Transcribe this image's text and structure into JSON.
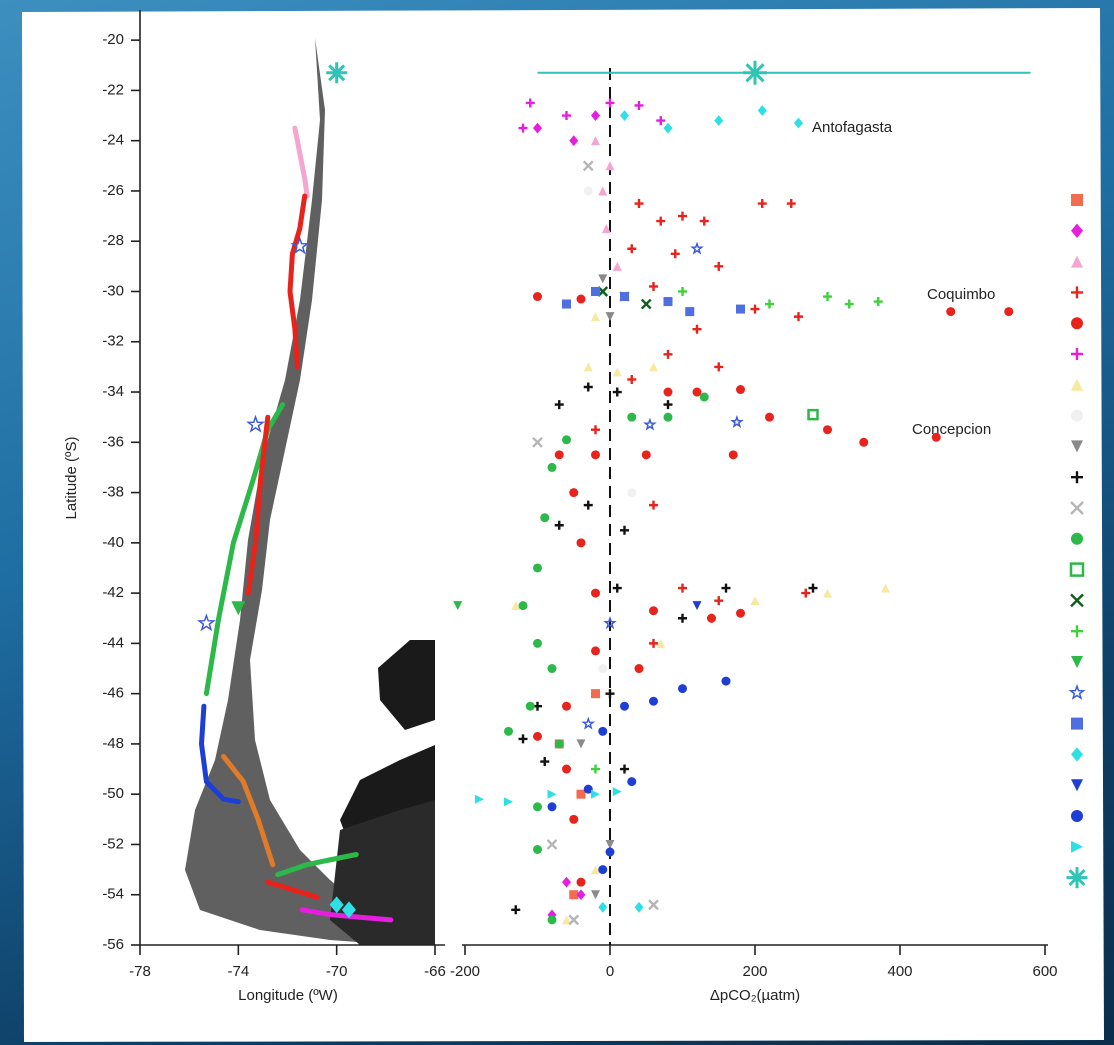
{
  "chart_data": {
    "type": "scatter",
    "ylabel": "Latitude (ºS)",
    "ylim": [
      -56,
      -19
    ],
    "yticks": [
      -56,
      -54,
      -52,
      -50,
      -48,
      -46,
      -44,
      -42,
      -40,
      -38,
      -36,
      -34,
      -32,
      -30,
      -28,
      -26,
      -24,
      -22,
      -20
    ],
    "panels": [
      {
        "type": "map",
        "xlabel": "Longitude (ºW)",
        "xlim": [
          -78,
          -66
        ],
        "xticks": [
          -78,
          -74,
          -70,
          -66
        ],
        "series": [
          {
            "color": "#f4a6d0",
            "marker": "line",
            "x": [
              -71.7,
              -71.5,
              -71.3,
              -71.2
            ],
            "y": [
              -23.5,
              -24.5,
              -25.5,
              -26.2
            ]
          },
          {
            "color": "#e8231c",
            "marker": "line",
            "x": [
              -71.3,
              -71.5,
              -71.8,
              -71.9,
              -71.7,
              -71.6
            ],
            "y": [
              -26.2,
              -27.5,
              -28.5,
              -30,
              -31.5,
              -33
            ]
          },
          {
            "color": "#2db84a",
            "marker": "line",
            "x": [
              -72.2,
              -72.8,
              -73.4,
              -74.2,
              -74.8,
              -75.3
            ],
            "y": [
              -34.5,
              -35.5,
              -37.5,
              -40,
              -43,
              -46
            ]
          },
          {
            "color": "#e8231c",
            "marker": "line",
            "x": [
              -72.8,
              -73.1,
              -73.3,
              -73.6
            ],
            "y": [
              -35,
              -37.5,
              -40,
              -42
            ]
          },
          {
            "color": "#1d3fd6",
            "marker": "line",
            "x": [
              -75.4,
              -75.5,
              -75.3,
              -74.6,
              -74
            ],
            "y": [
              -46.5,
              -48,
              -49.5,
              -50.2,
              -50.3
            ]
          },
          {
            "color": "#e07b2a",
            "marker": "line",
            "x": [
              -74.6,
              -73.8,
              -73.2,
              -72.6
            ],
            "y": [
              -48.5,
              -49.5,
              -51,
              -52.8
            ]
          },
          {
            "color": "#2db84a",
            "marker": "line",
            "x": [
              -72.4,
              -71.2,
              -70.2,
              -69.2
            ],
            "y": [
              -53.2,
              -52.8,
              -52.6,
              -52.4
            ]
          },
          {
            "color": "#e8231c",
            "marker": "line",
            "x": [
              -72.8,
              -71.8,
              -70.8
            ],
            "y": [
              -53.5,
              -53.8,
              -54.1
            ]
          },
          {
            "color": "#e61ee0",
            "marker": "line",
            "x": [
              -71.4,
              -70.2,
              -69,
              -67.8
            ],
            "y": [
              -54.6,
              -54.8,
              -54.9,
              -55
            ]
          },
          {
            "color": "#2ec4b6",
            "marker": "asterisk",
            "x": [
              -70
            ],
            "y": [
              -21.3
            ]
          },
          {
            "color": "#3d5bd9",
            "marker": "star",
            "x": [
              -73.3,
              -75.3,
              -71.5
            ],
            "y": [
              -35.3,
              -43.2,
              -28.2
            ]
          },
          {
            "color": "#2db84a",
            "marker": "tri-down",
            "x": [
              -74
            ],
            "y": [
              -42.6
            ]
          },
          {
            "color": "#2ee0e6",
            "marker": "diamond",
            "x": [
              -70,
              -69.5
            ],
            "y": [
              -54.4,
              -54.6
            ]
          }
        ]
      },
      {
        "type": "scatter",
        "xlabel": "ΔpCO₂(µatm)",
        "xlim": [
          -200,
          600
        ],
        "xticks": [
          -200,
          0,
          200,
          400,
          600
        ],
        "vline": 0,
        "annotations": [
          "Antofagasta",
          "Coquimbo",
          "Concepcion"
        ],
        "series": [
          {
            "color": "#f26a4f",
            "marker": "square",
            "x": [
              -20,
              -70,
              -40,
              -50
            ],
            "y": [
              -46,
              -48,
              -50,
              -54
            ]
          },
          {
            "color": "#e61ee0",
            "marker": "diamond",
            "x": [
              -100,
              -50,
              -20,
              -40,
              -80,
              -60
            ],
            "y": [
              -23.5,
              -24,
              -23,
              -54,
              -54.8,
              -53.5
            ]
          },
          {
            "color": "#f4a6d0",
            "marker": "triangle",
            "x": [
              -20,
              0,
              -10,
              -5,
              10
            ],
            "y": [
              -24,
              -25,
              -26,
              -27.5,
              -29
            ]
          },
          {
            "color": "#e8231c",
            "marker": "plus",
            "x": [
              40,
              70,
              100,
              130,
              210,
              30,
              90,
              150,
              60,
              200,
              260,
              120,
              80,
              150,
              250,
              30,
              -20,
              60,
              100,
              150,
              270,
              60,
              140
            ],
            "y": [
              -26.5,
              -27.2,
              -27,
              -27.2,
              -26.5,
              -28.3,
              -28.5,
              -29,
              -29.8,
              -30.7,
              -31,
              -31.5,
              -32.5,
              -33,
              -26.5,
              -33.5,
              -35.5,
              -38.5,
              -41.8,
              -42.3,
              -42,
              -44,
              -43
            ]
          },
          {
            "color": "#e8231c",
            "marker": "circle",
            "x": [
              -40,
              -100,
              80,
              120,
              180,
              220,
              300,
              350,
              450,
              470,
              550,
              -70,
              -20,
              50,
              170,
              -50,
              -40,
              -20,
              60,
              140,
              180,
              -20,
              40,
              -60,
              -100,
              -60,
              -50,
              -40
            ],
            "y": [
              -30.3,
              -30.2,
              -34,
              -34,
              -33.9,
              -35,
              -35.5,
              -36,
              -35.8,
              -30.8,
              -30.8,
              -36.5,
              -36.5,
              -36.5,
              -36.5,
              -38,
              -40,
              -42,
              -42.7,
              -43,
              -42.8,
              -44.3,
              -45,
              -46.5,
              -47.7,
              -49,
              -51,
              -53.5
            ]
          },
          {
            "color": "#e61ee0",
            "marker": "plus",
            "x": [
              -110,
              -60,
              0,
              -120,
              40,
              70
            ],
            "y": [
              -22.5,
              -23,
              -22.5,
              -23.5,
              -22.6,
              -23.2
            ]
          },
          {
            "color": "#f7e9a0",
            "marker": "triangle",
            "x": [
              -20,
              -30,
              10,
              60,
              300,
              380,
              200,
              70,
              -130,
              -60,
              -20
            ],
            "y": [
              -31,
              -33,
              -33.2,
              -33,
              -42,
              -41.8,
              -42.3,
              -44,
              -42.5,
              -55,
              -53
            ]
          },
          {
            "color": "#f0f0f0",
            "marker": "circle",
            "x": [
              -30,
              -10,
              30,
              -10
            ],
            "y": [
              -26,
              -30,
              -38,
              -45
            ]
          },
          {
            "color": "#8a8a8a",
            "marker": "tri-down",
            "x": [
              -10,
              0,
              -40,
              -20,
              0
            ],
            "y": [
              -29.5,
              -31,
              -48,
              -54,
              -52
            ]
          },
          {
            "color": "#111111",
            "marker": "plus",
            "x": [
              -30,
              10,
              80,
              -70,
              -30,
              -70,
              20,
              10,
              160,
              280,
              100,
              0,
              -100,
              -120,
              -90,
              20,
              -130
            ],
            "y": [
              -33.8,
              -34,
              -34.5,
              -34.5,
              -38.5,
              -39.3,
              -39.5,
              -41.8,
              -41.8,
              -41.8,
              -43,
              -46,
              -46.5,
              -47.8,
              -48.7,
              -49,
              -54.6
            ]
          },
          {
            "color": "#b5b5b5",
            "marker": "x",
            "x": [
              -30,
              20,
              -100,
              -80,
              -50,
              60
            ],
            "y": [
              -25,
              -30.2,
              -36,
              -52,
              -55,
              -54.4
            ]
          },
          {
            "color": "#2db84a",
            "marker": "circle",
            "x": [
              -80,
              -90,
              -100,
              -120,
              -100,
              -80,
              -110,
              -70,
              -100,
              -100,
              -80,
              -60,
              30,
              80,
              130,
              -140
            ],
            "y": [
              -37,
              -39,
              -41,
              -42.5,
              -44,
              -45,
              -46.5,
              -48,
              -50.5,
              -52.2,
              -55,
              -35.9,
              -35,
              -35,
              -34.2,
              -47.5
            ]
          },
          {
            "color": "#2db84a",
            "marker": "square-open",
            "x": [
              280
            ],
            "y": [
              -34.9
            ]
          },
          {
            "color": "#0d5e1a",
            "marker": "x",
            "x": [
              -10,
              50
            ],
            "y": [
              -30,
              -30.5
            ]
          },
          {
            "color": "#3ed13a",
            "marker": "plus",
            "x": [
              100,
              220,
              300,
              330,
              370,
              -20
            ],
            "y": [
              -30,
              -30.5,
              -30.2,
              -30.5,
              -30.4,
              -49
            ]
          },
          {
            "color": "#2db84a",
            "marker": "tri-down",
            "x": [
              -210,
              -60
            ],
            "y": [
              -42.5,
              -30.5
            ]
          },
          {
            "color": "#3d5bd9",
            "marker": "star",
            "x": [
              120,
              55,
              175,
              0,
              -30
            ],
            "y": [
              -28.3,
              -35.3,
              -35.2,
              -43.2,
              -47.2
            ]
          },
          {
            "color": "#4f6fe0",
            "marker": "square",
            "x": [
              -60,
              20,
              80,
              110,
              180,
              -20
            ],
            "y": [
              -30.5,
              -30.2,
              -30.4,
              -30.8,
              -30.7,
              -30
            ]
          },
          {
            "color": "#2ee0e6",
            "marker": "diamond",
            "x": [
              20,
              80,
              150,
              210,
              260,
              -10,
              40
            ],
            "y": [
              -23,
              -23.5,
              -23.2,
              -22.8,
              -23.3,
              -54.5,
              -54.5
            ]
          },
          {
            "color": "#1d3fd6",
            "marker": "tri-down",
            "x": [
              120
            ],
            "y": [
              -42.5
            ]
          },
          {
            "color": "#1d3fd6",
            "marker": "circle",
            "x": [
              20,
              60,
              100,
              160,
              -10,
              -30,
              30,
              -80,
              0,
              -10
            ],
            "y": [
              -46.5,
              -46.3,
              -45.8,
              -45.5,
              -47.5,
              -49.8,
              -49.5,
              -50.5,
              -52.3,
              -53
            ]
          },
          {
            "color": "#2ee0e6",
            "marker": "tri-right",
            "x": [
              -180,
              -140,
              -80,
              -20,
              10
            ],
            "y": [
              -50.2,
              -50.3,
              -50,
              -50,
              -49.9
            ]
          },
          {
            "color": "#2ec4b6",
            "marker": "asterisk",
            "x": [
              200
            ],
            "y": [
              -21.3
            ],
            "xerr": [
              300,
              380
            ]
          }
        ]
      }
    ]
  }
}
